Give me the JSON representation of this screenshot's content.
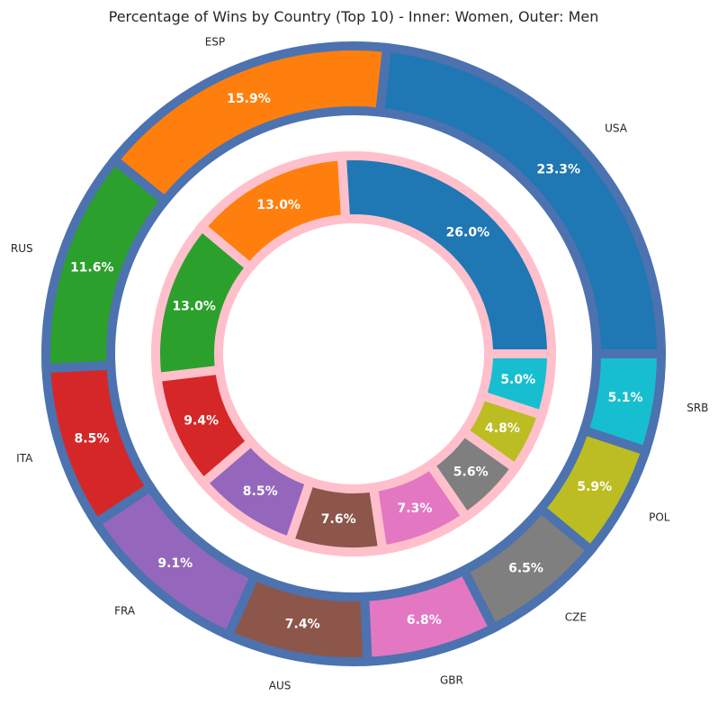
{
  "chart_data": {
    "type": "pie",
    "subtype": "nested-donut",
    "title": "Percentage of Wins by Country (Top 10) - Inner: Women, Outer: Men",
    "outer_ring": {
      "categories": [
        "USA",
        "ESP",
        "RUS",
        "ITA",
        "FRA",
        "AUS",
        "GBR",
        "CZE",
        "POL",
        "SRB"
      ],
      "values": [
        23.3,
        15.9,
        11.6,
        8.5,
        9.1,
        7.4,
        6.8,
        6.5,
        5.9,
        5.1
      ],
      "value_labels": [
        "23.3%",
        "15.9%",
        "11.6%",
        "8.5%",
        "9.1%",
        "7.4%",
        "6.8%",
        "6.5%",
        "5.9%",
        "5.1%"
      ],
      "edge_color": "#4c72b0"
    },
    "inner_ring": {
      "values": [
        26.0,
        13.0,
        13.0,
        9.4,
        8.5,
        7.6,
        7.3,
        5.6,
        4.8,
        5.0
      ],
      "value_labels": [
        "26.0%",
        "13.0%",
        "13.0%",
        "9.4%",
        "8.5%",
        "7.6%",
        "7.3%",
        "5.6%",
        "4.8%",
        "5.0%"
      ],
      "edge_color": "#ffc0cb"
    },
    "colors": [
      "#1f77b4",
      "#ff7f0e",
      "#2ca02c",
      "#d62728",
      "#9467bd",
      "#8c564b",
      "#e377c2",
      "#7f7f7f",
      "#bcbd22",
      "#17becf"
    ],
    "start_angle_deg": 0,
    "direction": "counterclockwise"
  }
}
